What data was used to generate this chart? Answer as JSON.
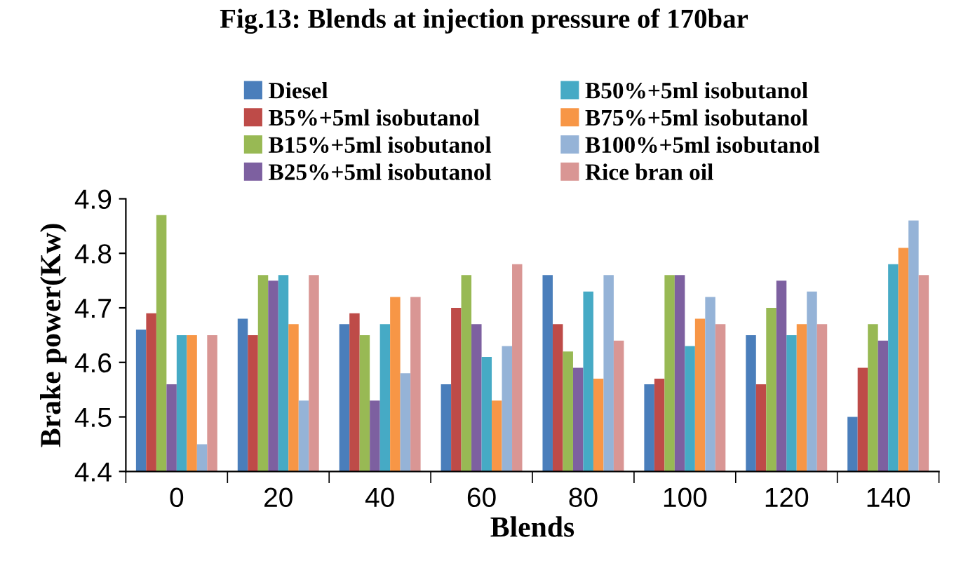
{
  "chart_data": {
    "type": "bar",
    "title": "Fig.13: Blends at injection pressure of 170bar",
    "xlabel": "Blends",
    "ylabel": "Brake power(Kw)",
    "categories": [
      "0",
      "20",
      "40",
      "60",
      "80",
      "100",
      "120",
      "140"
    ],
    "series": [
      {
        "name": "Diesel",
        "color": "#4a7ebb",
        "values": [
          4.66,
          4.68,
          4.67,
          4.56,
          4.76,
          4.56,
          4.65,
          4.5
        ]
      },
      {
        "name": "B5%+5ml isobutanol",
        "color": "#be4b48",
        "values": [
          4.69,
          4.65,
          4.69,
          4.7,
          4.67,
          4.57,
          4.56,
          4.59
        ]
      },
      {
        "name": "B15%+5ml isobutanol",
        "color": "#98b954",
        "values": [
          4.87,
          4.76,
          4.65,
          4.76,
          4.62,
          4.76,
          4.7,
          4.67
        ]
      },
      {
        "name": "B25%+5ml isobutanol",
        "color": "#7d60a0",
        "values": [
          4.56,
          4.75,
          4.53,
          4.67,
          4.59,
          4.76,
          4.75,
          4.64
        ]
      },
      {
        "name": "B50%+5ml isobutanol",
        "color": "#46aac5",
        "values": [
          4.65,
          4.76,
          4.67,
          4.61,
          4.73,
          4.63,
          4.65,
          4.78
        ]
      },
      {
        "name": "B75%+5ml isobutanol",
        "color": "#f79646",
        "values": [
          4.65,
          4.67,
          4.72,
          4.53,
          4.57,
          4.68,
          4.67,
          4.81
        ]
      },
      {
        "name": "B100%+5ml isobutanol",
        "color": "#95b3d7",
        "values": [
          4.45,
          4.53,
          4.58,
          4.63,
          4.76,
          4.72,
          4.73,
          4.86
        ]
      },
      {
        "name": "Rice bran oil",
        "color": "#d99694",
        "values": [
          4.65,
          4.76,
          4.72,
          4.78,
          4.64,
          4.67,
          4.67,
          4.76
        ]
      }
    ],
    "ylim": [
      4.4,
      4.9
    ],
    "yticks": [
      4.4,
      4.5,
      4.6,
      4.7,
      4.8,
      4.9
    ],
    "grid": false,
    "legend": "top"
  }
}
